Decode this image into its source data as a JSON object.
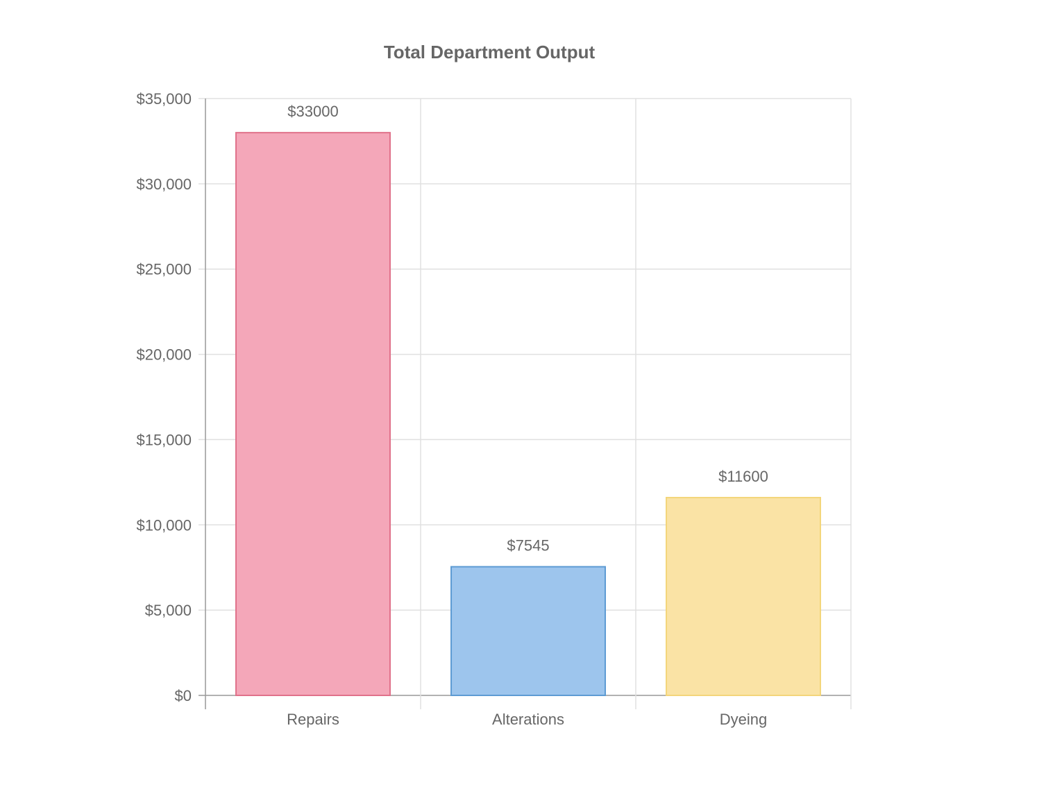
{
  "chart_data": {
    "type": "bar",
    "title": "Total Department Output",
    "categories": [
      "Repairs",
      "Alterations",
      "Dyeing"
    ],
    "values": [
      33000,
      7545,
      11600
    ],
    "data_labels": [
      "$33000",
      "$7545",
      "$11600"
    ],
    "y_tick_values": [
      0,
      5000,
      10000,
      15000,
      20000,
      25000,
      30000,
      35000
    ],
    "y_tick_labels": [
      "$0",
      "$5,000",
      "$10,000",
      "$15,000",
      "$20,000",
      "$25,000",
      "$30,000",
      "$35,000"
    ],
    "ylim": [
      0,
      35000
    ],
    "grid": true,
    "legend": "none",
    "colors": {
      "fills": [
        "#f4a7b9",
        "#9dc5ed",
        "#fae3a5"
      ],
      "borders": [
        "#e0718a",
        "#5d9bd3",
        "#f3d57a"
      ],
      "grid": "#e0e0e0",
      "axis": "#999999",
      "text": "#666666"
    }
  }
}
